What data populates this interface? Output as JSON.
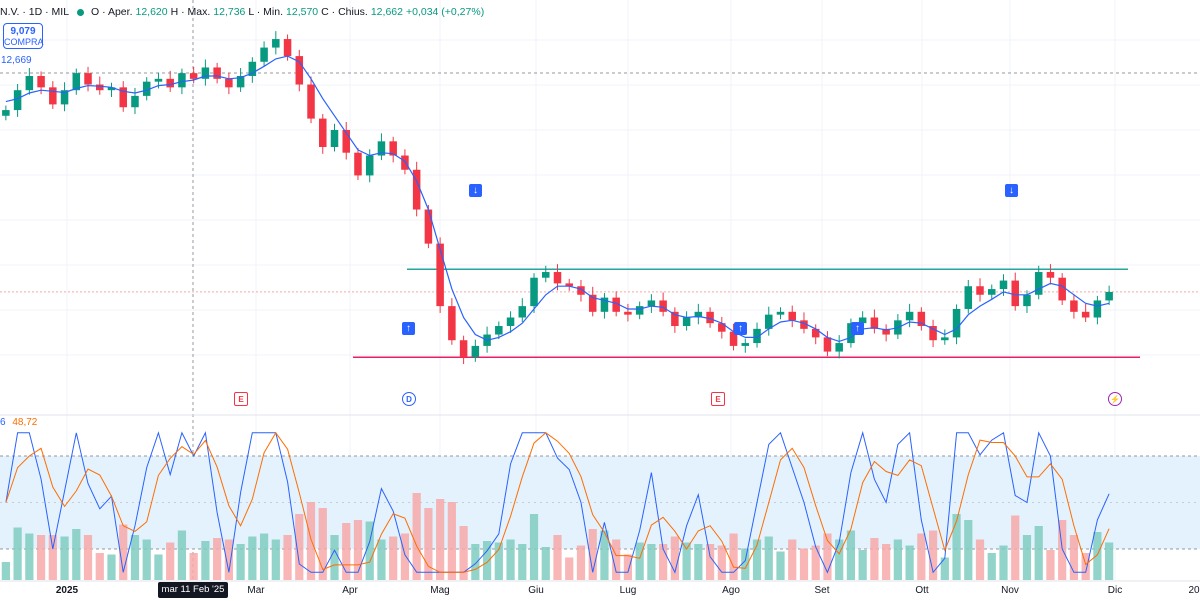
{
  "header": {
    "symbol_suffix": "N.V. · 1D · MIL",
    "status_color": "#089981",
    "open_label": "O · Aper.",
    "open_value": "12,620",
    "high_label": "H · Max.",
    "high_value": "12,736",
    "low_label": "L · Min.",
    "low_value": "12,570",
    "close_label": "C · Chius.",
    "close_value": "12,662",
    "change": "+0,034 (+0,27%)"
  },
  "buy_button": {
    "price": "9,079",
    "label": "COMPRA"
  },
  "ma_readout": "12,669",
  "oscillator": {
    "k_value": "6",
    "d_value": "48,72"
  },
  "events": [
    {
      "letter": "E",
      "kind": "earnings"
    },
    {
      "letter": "D",
      "kind": "dividend"
    },
    {
      "letter": "E",
      "kind": "earnings"
    },
    {
      "letter": "⚡",
      "kind": "news"
    }
  ],
  "cursor_date": "mar 11 Feb '25",
  "time_axis": [
    "2025",
    "Mar",
    "Apr",
    "Mag",
    "Giu",
    "Lug",
    "Ago",
    "Set",
    "Ott",
    "Nov",
    "Dic",
    "20"
  ],
  "colors": {
    "up": "#089981",
    "down": "#f23645",
    "ma": "#2962ff",
    "k_line": "#2962ff",
    "d_line": "#ff6d00",
    "resistance": "#26a69a",
    "support": "#e91e63",
    "band": "#e3f2fd",
    "vol_up": "#7fcdc0",
    "vol_down": "#f7a9a9"
  },
  "chart_data": {
    "type": "line",
    "title": "",
    "series": [
      {
        "name": "Close",
        "values": [
          12.55,
          12.9,
          13.15,
          12.95,
          12.65,
          12.9,
          13.2,
          13.0,
          12.9,
          12.95,
          12.6,
          12.8,
          13.05,
          13.1,
          12.95,
          13.2,
          13.1,
          13.3,
          13.1,
          12.95,
          13.15,
          13.4,
          13.65,
          13.8,
          13.5,
          13.0,
          12.4,
          11.9,
          12.2,
          11.8,
          11.4,
          11.75,
          12.0,
          11.75,
          11.5,
          10.8,
          10.2,
          9.1,
          8.5,
          8.2,
          8.4,
          8.6,
          8.75,
          8.9,
          9.1,
          9.6,
          9.7,
          9.5,
          9.45,
          9.3,
          9.0,
          9.25,
          9.0,
          8.95,
          9.1,
          9.2,
          9.0,
          8.75,
          8.9,
          9.0,
          8.8,
          8.65,
          8.4,
          8.45,
          8.7,
          8.95,
          9.0,
          8.85,
          8.7,
          8.55,
          8.3,
          8.45,
          8.8,
          8.9,
          8.7,
          8.6,
          8.85,
          9.0,
          8.75,
          8.5,
          8.55,
          9.05,
          9.45,
          9.3,
          9.4,
          9.55,
          9.1,
          9.3,
          9.7,
          9.6,
          9.2,
          9.0,
          8.9,
          9.2,
          9.35
        ]
      },
      {
        "name": "MA",
        "values": [
          12.7,
          12.75,
          12.85,
          12.9,
          12.88,
          12.86,
          12.93,
          12.98,
          12.97,
          12.95,
          12.88,
          12.85,
          12.9,
          12.98,
          13.0,
          13.05,
          13.08,
          13.15,
          13.15,
          13.1,
          13.12,
          13.2,
          13.32,
          13.45,
          13.5,
          13.4,
          13.1,
          12.75,
          12.45,
          12.15,
          11.85,
          11.75,
          11.8,
          11.78,
          11.65,
          11.3,
          10.8,
          10.1,
          9.4,
          8.9,
          8.6,
          8.5,
          8.55,
          8.65,
          8.8,
          9.05,
          9.3,
          9.45,
          9.45,
          9.4,
          9.25,
          9.2,
          9.15,
          9.05,
          9.05,
          9.1,
          9.08,
          8.95,
          8.9,
          8.92,
          8.88,
          8.8,
          8.65,
          8.55,
          8.55,
          8.7,
          8.82,
          8.85,
          8.8,
          8.7,
          8.55,
          8.48,
          8.55,
          8.7,
          8.72,
          8.68,
          8.72,
          8.82,
          8.8,
          8.7,
          8.6,
          8.7,
          8.95,
          9.1,
          9.22,
          9.35,
          9.3,
          9.3,
          9.4,
          9.5,
          9.45,
          9.3,
          9.15,
          9.1,
          9.15
        ]
      }
    ],
    "resistance_level": 9.75,
    "support_level": 8.2,
    "oscillator_band": [
      20,
      80
    ],
    "x_labels": [
      "2025",
      "Mar",
      "Apr",
      "Mag",
      "Giu",
      "Lug",
      "Ago",
      "Set",
      "Ott",
      "Nov",
      "Dic",
      "20"
    ],
    "ylim": [
      7.8,
      14.1
    ],
    "grid": true,
    "legend": "top-left"
  }
}
